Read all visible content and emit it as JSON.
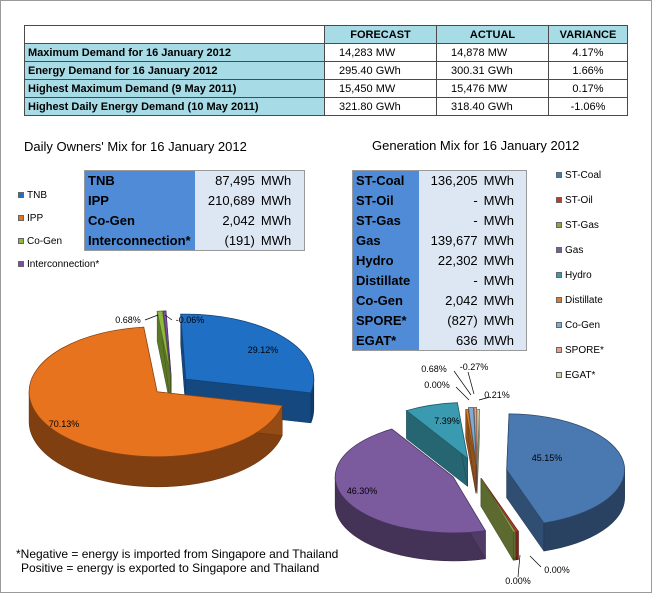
{
  "summary": {
    "headers": [
      "FORECAST",
      "ACTUAL",
      "VARIANCE"
    ],
    "rows": [
      {
        "label": "Maximum Demand for 16 January 2012",
        "forecast": "14,283 MW",
        "actual": "14,878 MW",
        "variance": "4.17%"
      },
      {
        "label": "Energy Demand for 16 January 2012",
        "forecast": "295.40 GWh",
        "actual": "300.31 GWh",
        "variance": "1.66%"
      },
      {
        "label": "Highest Maximum Demand (9 May 2011)",
        "forecast": "15,450 MW",
        "actual": "15,476 MW",
        "variance": "0.17%"
      },
      {
        "label": "Highest Daily Energy Demand (10 May 2011)",
        "forecast": "321.80 GWh",
        "actual": "318.40 GWh",
        "variance": "-1.06%"
      }
    ]
  },
  "owners": {
    "title": "Daily Owners' Mix for 16 January 2012",
    "table": [
      {
        "name": "TNB",
        "value": "87,495",
        "unit": "MWh"
      },
      {
        "name": "IPP",
        "value": "210,689",
        "unit": "MWh"
      },
      {
        "name": "Co-Gen",
        "value": "2,042",
        "unit": "MWh"
      },
      {
        "name": "Interconnection*",
        "value": "(191)",
        "unit": "MWh"
      }
    ]
  },
  "generation": {
    "title": "Generation Mix for 16 January 2012",
    "table": [
      {
        "name": "ST-Coal",
        "value": "136,205",
        "unit": "MWh"
      },
      {
        "name": "ST-Oil",
        "value": "-",
        "unit": "MWh"
      },
      {
        "name": "ST-Gas",
        "value": "-",
        "unit": "MWh"
      },
      {
        "name": "Gas",
        "value": "139,677",
        "unit": "MWh"
      },
      {
        "name": "Hydro",
        "value": "22,302",
        "unit": "MWh"
      },
      {
        "name": "Distillate",
        "value": "-",
        "unit": "MWh"
      },
      {
        "name": "Co-Gen",
        "value": "2,042",
        "unit": "MWh"
      },
      {
        "name": "SPORE*",
        "value": "(827)",
        "unit": "MWh"
      },
      {
        "name": "EGAT*",
        "value": "636",
        "unit": "MWh"
      }
    ]
  },
  "footnote": {
    "line1": "*Negative = energy is imported from Singapore and Thailand",
    "line2": "Positive = energy is exported to Singapore and Thailand"
  },
  "chart_data": [
    {
      "type": "pie",
      "title": "Daily Owners' Mix for 16 January 2012",
      "legend_position": "top-left",
      "slices": [
        {
          "name": "TNB",
          "value": 29.12,
          "label": "29.12%",
          "color": "#1f6fc4"
        },
        {
          "name": "IPP",
          "value": 70.13,
          "label": "70.13%",
          "color": "#e8731e"
        },
        {
          "name": "Co-Gen",
          "value": 0.68,
          "label": "0.68%",
          "color": "#8db83c"
        },
        {
          "name": "Interconnection*",
          "value": -0.06,
          "label": "-0.06%",
          "color": "#7e4fa8"
        }
      ]
    },
    {
      "type": "pie",
      "title": "Generation Mix for 16 January 2012",
      "legend_position": "right",
      "slices": [
        {
          "name": "ST-Coal",
          "value": 45.15,
          "label": "45.15%",
          "color": "#4a78b0"
        },
        {
          "name": "ST-Oil",
          "value": 0.0,
          "label": "0.00%",
          "color": "#c0392b"
        },
        {
          "name": "ST-Gas",
          "value": 0.0,
          "label": "0.00%",
          "color": "#8fa348"
        },
        {
          "name": "Gas",
          "value": 46.3,
          "label": "46.30%",
          "color": "#7b5a9e"
        },
        {
          "name": "Hydro",
          "value": 7.39,
          "label": "7.39%",
          "color": "#3a9bb0"
        },
        {
          "name": "Distillate",
          "value": 0.0,
          "label": "0.00%",
          "color": "#e07b2a"
        },
        {
          "name": "Co-Gen",
          "value": 0.68,
          "label": "0.68%",
          "color": "#7aaed6"
        },
        {
          "name": "SPORE*",
          "value": -0.27,
          "label": "-0.27%",
          "color": "#e6a08a"
        },
        {
          "name": "EGAT*",
          "value": 0.21,
          "label": "0.21%",
          "color": "#cfd8a8"
        }
      ]
    }
  ]
}
